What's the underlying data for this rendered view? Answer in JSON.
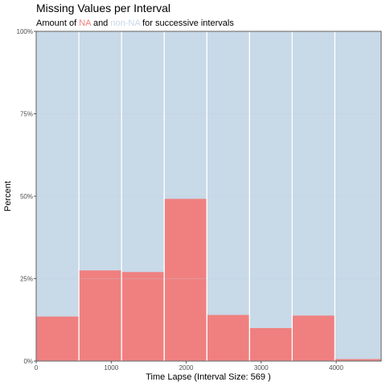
{
  "chart_data": {
    "type": "bar",
    "title": "Missing Values per Interval",
    "subtitle": {
      "prefix": "Amount of ",
      "na": "NA",
      "middle": " and ",
      "non_na": "non-NA",
      "suffix": " for successive intervals"
    },
    "xlabel": "Time Lapse (Interval Size: 569 )",
    "ylabel": "Percent",
    "interval_size": 569,
    "x_range": [
      0,
      4600
    ],
    "ylim": [
      0,
      1
    ],
    "x_ticks": [
      {
        "value": 0,
        "label": "0"
      },
      {
        "value": 1000,
        "label": "1000"
      },
      {
        "value": 2000,
        "label": "2000"
      },
      {
        "value": 3000,
        "label": "3000"
      },
      {
        "value": 4000,
        "label": "4000"
      }
    ],
    "y_ticks": [
      {
        "value": 0,
        "label": "0%"
      },
      {
        "value": 0.25,
        "label": "25%"
      },
      {
        "value": 0.5,
        "label": "50%"
      },
      {
        "value": 0.75,
        "label": "75%"
      },
      {
        "value": 1,
        "label": "100%"
      }
    ],
    "intervals": [
      {
        "start": 0,
        "end": 569,
        "na": 0.135
      },
      {
        "start": 569,
        "end": 1138,
        "na": 0.275
      },
      {
        "start": 1138,
        "end": 1707,
        "na": 0.27
      },
      {
        "start": 1707,
        "end": 2276,
        "na": 0.492
      },
      {
        "start": 2276,
        "end": 2845,
        "na": 0.14
      },
      {
        "start": 2845,
        "end": 3414,
        "na": 0.1
      },
      {
        "start": 3414,
        "end": 3983,
        "na": 0.138
      },
      {
        "start": 3983,
        "end": 4600,
        "na": 0.006
      }
    ],
    "colors": {
      "na": "#f08080",
      "non_na": "#c8d9e8",
      "non_na_label": "#c8d9e8",
      "bar_border": "#ffffff",
      "grid": "#b8cbdc"
    },
    "grid": true,
    "legend": "none"
  }
}
